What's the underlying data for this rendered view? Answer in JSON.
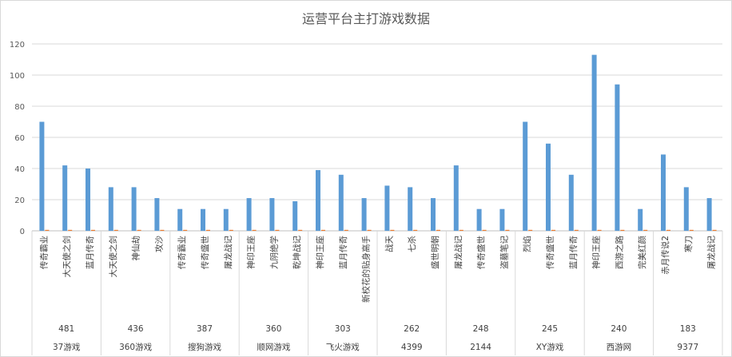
{
  "chart_data": {
    "type": "bar",
    "title": "运营平台主打游戏数据",
    "ylim": [
      0,
      120
    ],
    "yticks": [
      0,
      20,
      40,
      60,
      80,
      100,
      120
    ],
    "grid": true,
    "series_colors": [
      "#5b9bd5",
      "#ed7d31"
    ],
    "groups": [
      {
        "platform": "37游戏",
        "total": "481",
        "games": [
          "传奇霸业",
          "大天使之剑",
          "蓝月传奇"
        ],
        "values": [
          70,
          42,
          40
        ],
        "values2": [
          0.6,
          0.6,
          0.6
        ]
      },
      {
        "platform": "360游戏",
        "total": "436",
        "games": [
          "大天使之剑",
          "神仙劫",
          "攻沙"
        ],
        "values": [
          28,
          28,
          21
        ],
        "values2": [
          0.6,
          0.6,
          0.6
        ]
      },
      {
        "platform": "搜狗游戏",
        "total": "387",
        "games": [
          "传奇霸业",
          "传奇盛世",
          "屠龙战记"
        ],
        "values": [
          14,
          14,
          14
        ],
        "values2": [
          0.6,
          0.6,
          0.6
        ]
      },
      {
        "platform": "顺网游戏",
        "total": "360",
        "games": [
          "神印王座",
          "九阴绝学",
          "乾坤战记"
        ],
        "values": [
          21,
          21,
          19
        ],
        "values2": [
          0.6,
          0.6,
          0.6
        ]
      },
      {
        "platform": "飞火游戏",
        "total": "303",
        "games": [
          "神印王座",
          "蓝月传奇",
          "新校花的贴身高手"
        ],
        "values": [
          39,
          36,
          21
        ],
        "values2": [
          0.6,
          0.6,
          0.6
        ]
      },
      {
        "platform": "4399",
        "total": "262",
        "games": [
          "战天",
          "七杀",
          "盛世明朝"
        ],
        "values": [
          29,
          28,
          21
        ],
        "values2": [
          0.6,
          0.6,
          0.6
        ]
      },
      {
        "platform": "2144",
        "total": "248",
        "games": [
          "屠龙战记",
          "传奇盛世",
          "盗墓笔记"
        ],
        "values": [
          42,
          14,
          14
        ],
        "values2": [
          0.6,
          0.6,
          0.6
        ]
      },
      {
        "platform": "XY游戏",
        "total": "245",
        "games": [
          "烈焰",
          "传奇盛世",
          "蓝月传奇"
        ],
        "values": [
          70,
          56,
          36
        ],
        "values2": [
          0.6,
          0.6,
          0.6
        ]
      },
      {
        "platform": "西游网",
        "total": "240",
        "games": [
          "神印王座",
          "西游之路",
          "完美红颜"
        ],
        "values": [
          113,
          94,
          14
        ],
        "values2": [
          0.6,
          0.6,
          0.6
        ]
      },
      {
        "platform": "9377",
        "total": "183",
        "games": [
          "赤月传说2",
          "寒刀",
          "屠龙战记"
        ],
        "values": [
          49,
          28,
          21
        ],
        "values2": [
          0.6,
          0.6,
          0.6
        ]
      }
    ]
  }
}
